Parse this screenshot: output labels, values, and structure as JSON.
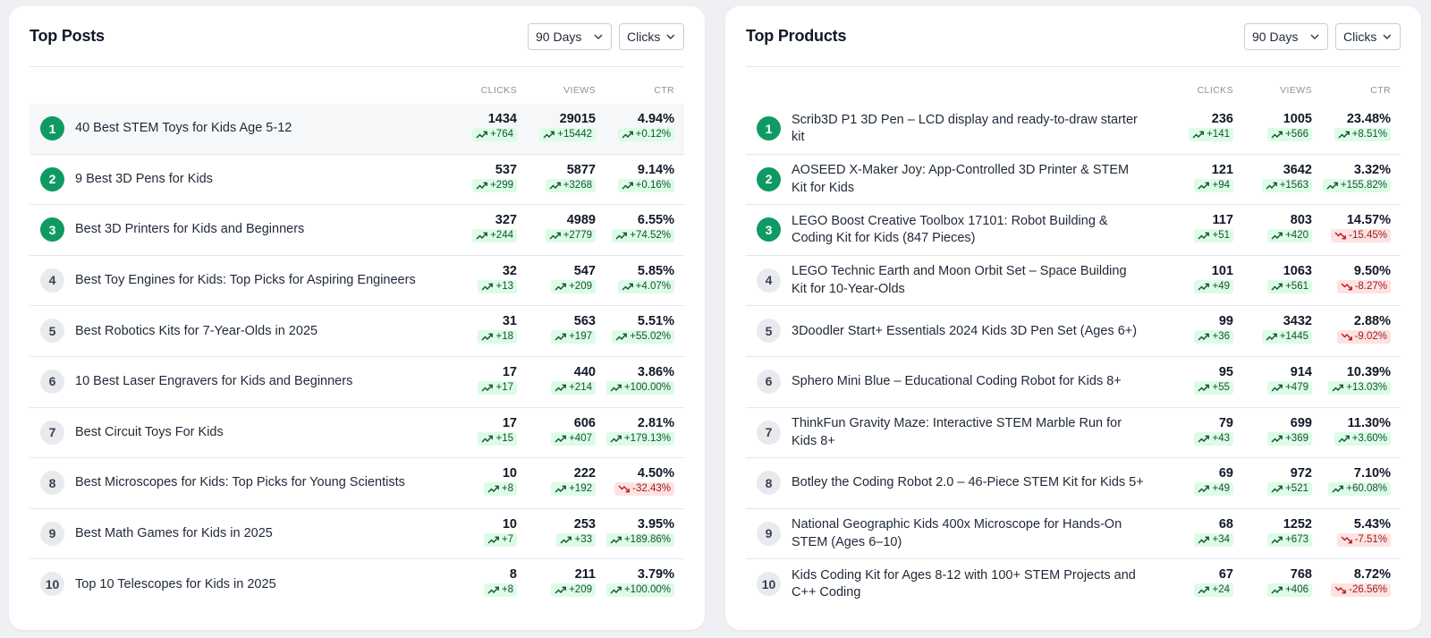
{
  "colors": {
    "accent": "#0f9a63",
    "up_bg": "#dcfce7",
    "down_bg": "#fee2e2"
  },
  "icons": {
    "chevron": "chevron-down-icon",
    "up": "trend-up-icon",
    "down": "trend-down-icon"
  },
  "posts": {
    "title": "Top Posts",
    "range": "90 Days",
    "metric": "Clicks",
    "headers": {
      "clicks": "CLICKS",
      "views": "VIEWS",
      "ctr": "CTR"
    },
    "rows": [
      {
        "rank": "1",
        "title": "40 Best STEM Toys for Kids Age 5-12",
        "clicks": "1434",
        "clicks_chg": "+764",
        "clicks_dir": "up",
        "views": "29015",
        "views_chg": "+15442",
        "views_dir": "up",
        "ctr": "4.94%",
        "ctr_chg": "+0.12%",
        "ctr_dir": "up"
      },
      {
        "rank": "2",
        "title": "9 Best 3D Pens for Kids",
        "clicks": "537",
        "clicks_chg": "+299",
        "clicks_dir": "up",
        "views": "5877",
        "views_chg": "+3268",
        "views_dir": "up",
        "ctr": "9.14%",
        "ctr_chg": "+0.16%",
        "ctr_dir": "up"
      },
      {
        "rank": "3",
        "title": "Best 3D Printers for Kids and Beginners",
        "clicks": "327",
        "clicks_chg": "+244",
        "clicks_dir": "up",
        "views": "4989",
        "views_chg": "+2779",
        "views_dir": "up",
        "ctr": "6.55%",
        "ctr_chg": "+74.52%",
        "ctr_dir": "up"
      },
      {
        "rank": "4",
        "title": "Best Toy Engines for Kids: Top Picks for Aspiring Engineers",
        "clicks": "32",
        "clicks_chg": "+13",
        "clicks_dir": "up",
        "views": "547",
        "views_chg": "+209",
        "views_dir": "up",
        "ctr": "5.85%",
        "ctr_chg": "+4.07%",
        "ctr_dir": "up"
      },
      {
        "rank": "5",
        "title": "Best Robotics Kits for 7-Year-Olds in 2025",
        "clicks": "31",
        "clicks_chg": "+18",
        "clicks_dir": "up",
        "views": "563",
        "views_chg": "+197",
        "views_dir": "up",
        "ctr": "5.51%",
        "ctr_chg": "+55.02%",
        "ctr_dir": "up"
      },
      {
        "rank": "6",
        "title": "10 Best Laser Engravers for Kids and Beginners",
        "clicks": "17",
        "clicks_chg": "+17",
        "clicks_dir": "up",
        "views": "440",
        "views_chg": "+214",
        "views_dir": "up",
        "ctr": "3.86%",
        "ctr_chg": "+100.00%",
        "ctr_dir": "up"
      },
      {
        "rank": "7",
        "title": "Best Circuit Toys For Kids",
        "clicks": "17",
        "clicks_chg": "+15",
        "clicks_dir": "up",
        "views": "606",
        "views_chg": "+407",
        "views_dir": "up",
        "ctr": "2.81%",
        "ctr_chg": "+179.13%",
        "ctr_dir": "up"
      },
      {
        "rank": "8",
        "title": "Best Microscopes for Kids: Top Picks for Young Scientists",
        "clicks": "10",
        "clicks_chg": "+8",
        "clicks_dir": "up",
        "views": "222",
        "views_chg": "+192",
        "views_dir": "up",
        "ctr": "4.50%",
        "ctr_chg": "-32.43%",
        "ctr_dir": "down"
      },
      {
        "rank": "9",
        "title": "Best Math Games for Kids in 2025",
        "clicks": "10",
        "clicks_chg": "+7",
        "clicks_dir": "up",
        "views": "253",
        "views_chg": "+33",
        "views_dir": "up",
        "ctr": "3.95%",
        "ctr_chg": "+189.86%",
        "ctr_dir": "up"
      },
      {
        "rank": "10",
        "title": "Top 10 Telescopes for Kids in 2025",
        "clicks": "8",
        "clicks_chg": "+8",
        "clicks_dir": "up",
        "views": "211",
        "views_chg": "+209",
        "views_dir": "up",
        "ctr": "3.79%",
        "ctr_chg": "+100.00%",
        "ctr_dir": "up"
      }
    ]
  },
  "products": {
    "title": "Top Products",
    "range": "90 Days",
    "metric": "Clicks",
    "headers": {
      "clicks": "CLICKS",
      "views": "VIEWS",
      "ctr": "CTR"
    },
    "rows": [
      {
        "rank": "1",
        "title": "Scrib3D P1 3D Pen – LCD display and ready-to-draw starter kit",
        "clicks": "236",
        "clicks_chg": "+141",
        "clicks_dir": "up",
        "views": "1005",
        "views_chg": "+566",
        "views_dir": "up",
        "ctr": "23.48%",
        "ctr_chg": "+8.51%",
        "ctr_dir": "up"
      },
      {
        "rank": "2",
        "title": "AOSEED X-Maker Joy: App-Controlled 3D Printer & STEM Kit for Kids",
        "clicks": "121",
        "clicks_chg": "+94",
        "clicks_dir": "up",
        "views": "3642",
        "views_chg": "+1563",
        "views_dir": "up",
        "ctr": "3.32%",
        "ctr_chg": "+155.82%",
        "ctr_dir": "up"
      },
      {
        "rank": "3",
        "title": "LEGO Boost Creative Toolbox 17101: Robot Building & Coding Kit for Kids (847 Pieces)",
        "clicks": "117",
        "clicks_chg": "+51",
        "clicks_dir": "up",
        "views": "803",
        "views_chg": "+420",
        "views_dir": "up",
        "ctr": "14.57%",
        "ctr_chg": "-15.45%",
        "ctr_dir": "down"
      },
      {
        "rank": "4",
        "title": "LEGO Technic Earth and Moon Orbit Set – Space Building Kit for 10-Year-Olds",
        "clicks": "101",
        "clicks_chg": "+49",
        "clicks_dir": "up",
        "views": "1063",
        "views_chg": "+561",
        "views_dir": "up",
        "ctr": "9.50%",
        "ctr_chg": "-8.27%",
        "ctr_dir": "down"
      },
      {
        "rank": "5",
        "title": "3Doodler Start+ Essentials 2024 Kids 3D Pen Set (Ages 6+)",
        "clicks": "99",
        "clicks_chg": "+36",
        "clicks_dir": "up",
        "views": "3432",
        "views_chg": "+1445",
        "views_dir": "up",
        "ctr": "2.88%",
        "ctr_chg": "-9.02%",
        "ctr_dir": "down"
      },
      {
        "rank": "6",
        "title": "Sphero Mini Blue – Educational Coding Robot for Kids 8+",
        "clicks": "95",
        "clicks_chg": "+55",
        "clicks_dir": "up",
        "views": "914",
        "views_chg": "+479",
        "views_dir": "up",
        "ctr": "10.39%",
        "ctr_chg": "+13.03%",
        "ctr_dir": "up"
      },
      {
        "rank": "7",
        "title": "ThinkFun Gravity Maze: Interactive STEM Marble Run for Kids 8+",
        "clicks": "79",
        "clicks_chg": "+43",
        "clicks_dir": "up",
        "views": "699",
        "views_chg": "+369",
        "views_dir": "up",
        "ctr": "11.30%",
        "ctr_chg": "+3.60%",
        "ctr_dir": "up"
      },
      {
        "rank": "8",
        "title": "Botley the Coding Robot 2.0 – 46-Piece STEM Kit for Kids 5+",
        "clicks": "69",
        "clicks_chg": "+49",
        "clicks_dir": "up",
        "views": "972",
        "views_chg": "+521",
        "views_dir": "up",
        "ctr": "7.10%",
        "ctr_chg": "+60.08%",
        "ctr_dir": "up"
      },
      {
        "rank": "9",
        "title": "National Geographic Kids 400x Microscope for Hands-On STEM (Ages 6–10)",
        "clicks": "68",
        "clicks_chg": "+34",
        "clicks_dir": "up",
        "views": "1252",
        "views_chg": "+673",
        "views_dir": "up",
        "ctr": "5.43%",
        "ctr_chg": "-7.51%",
        "ctr_dir": "down"
      },
      {
        "rank": "10",
        "title": "Kids Coding Kit for Ages 8-12 with 100+ STEM Projects and C++ Coding",
        "clicks": "67",
        "clicks_chg": "+24",
        "clicks_dir": "up",
        "views": "768",
        "views_chg": "+406",
        "views_dir": "up",
        "ctr": "8.72%",
        "ctr_chg": "-26.56%",
        "ctr_dir": "down"
      }
    ]
  }
}
